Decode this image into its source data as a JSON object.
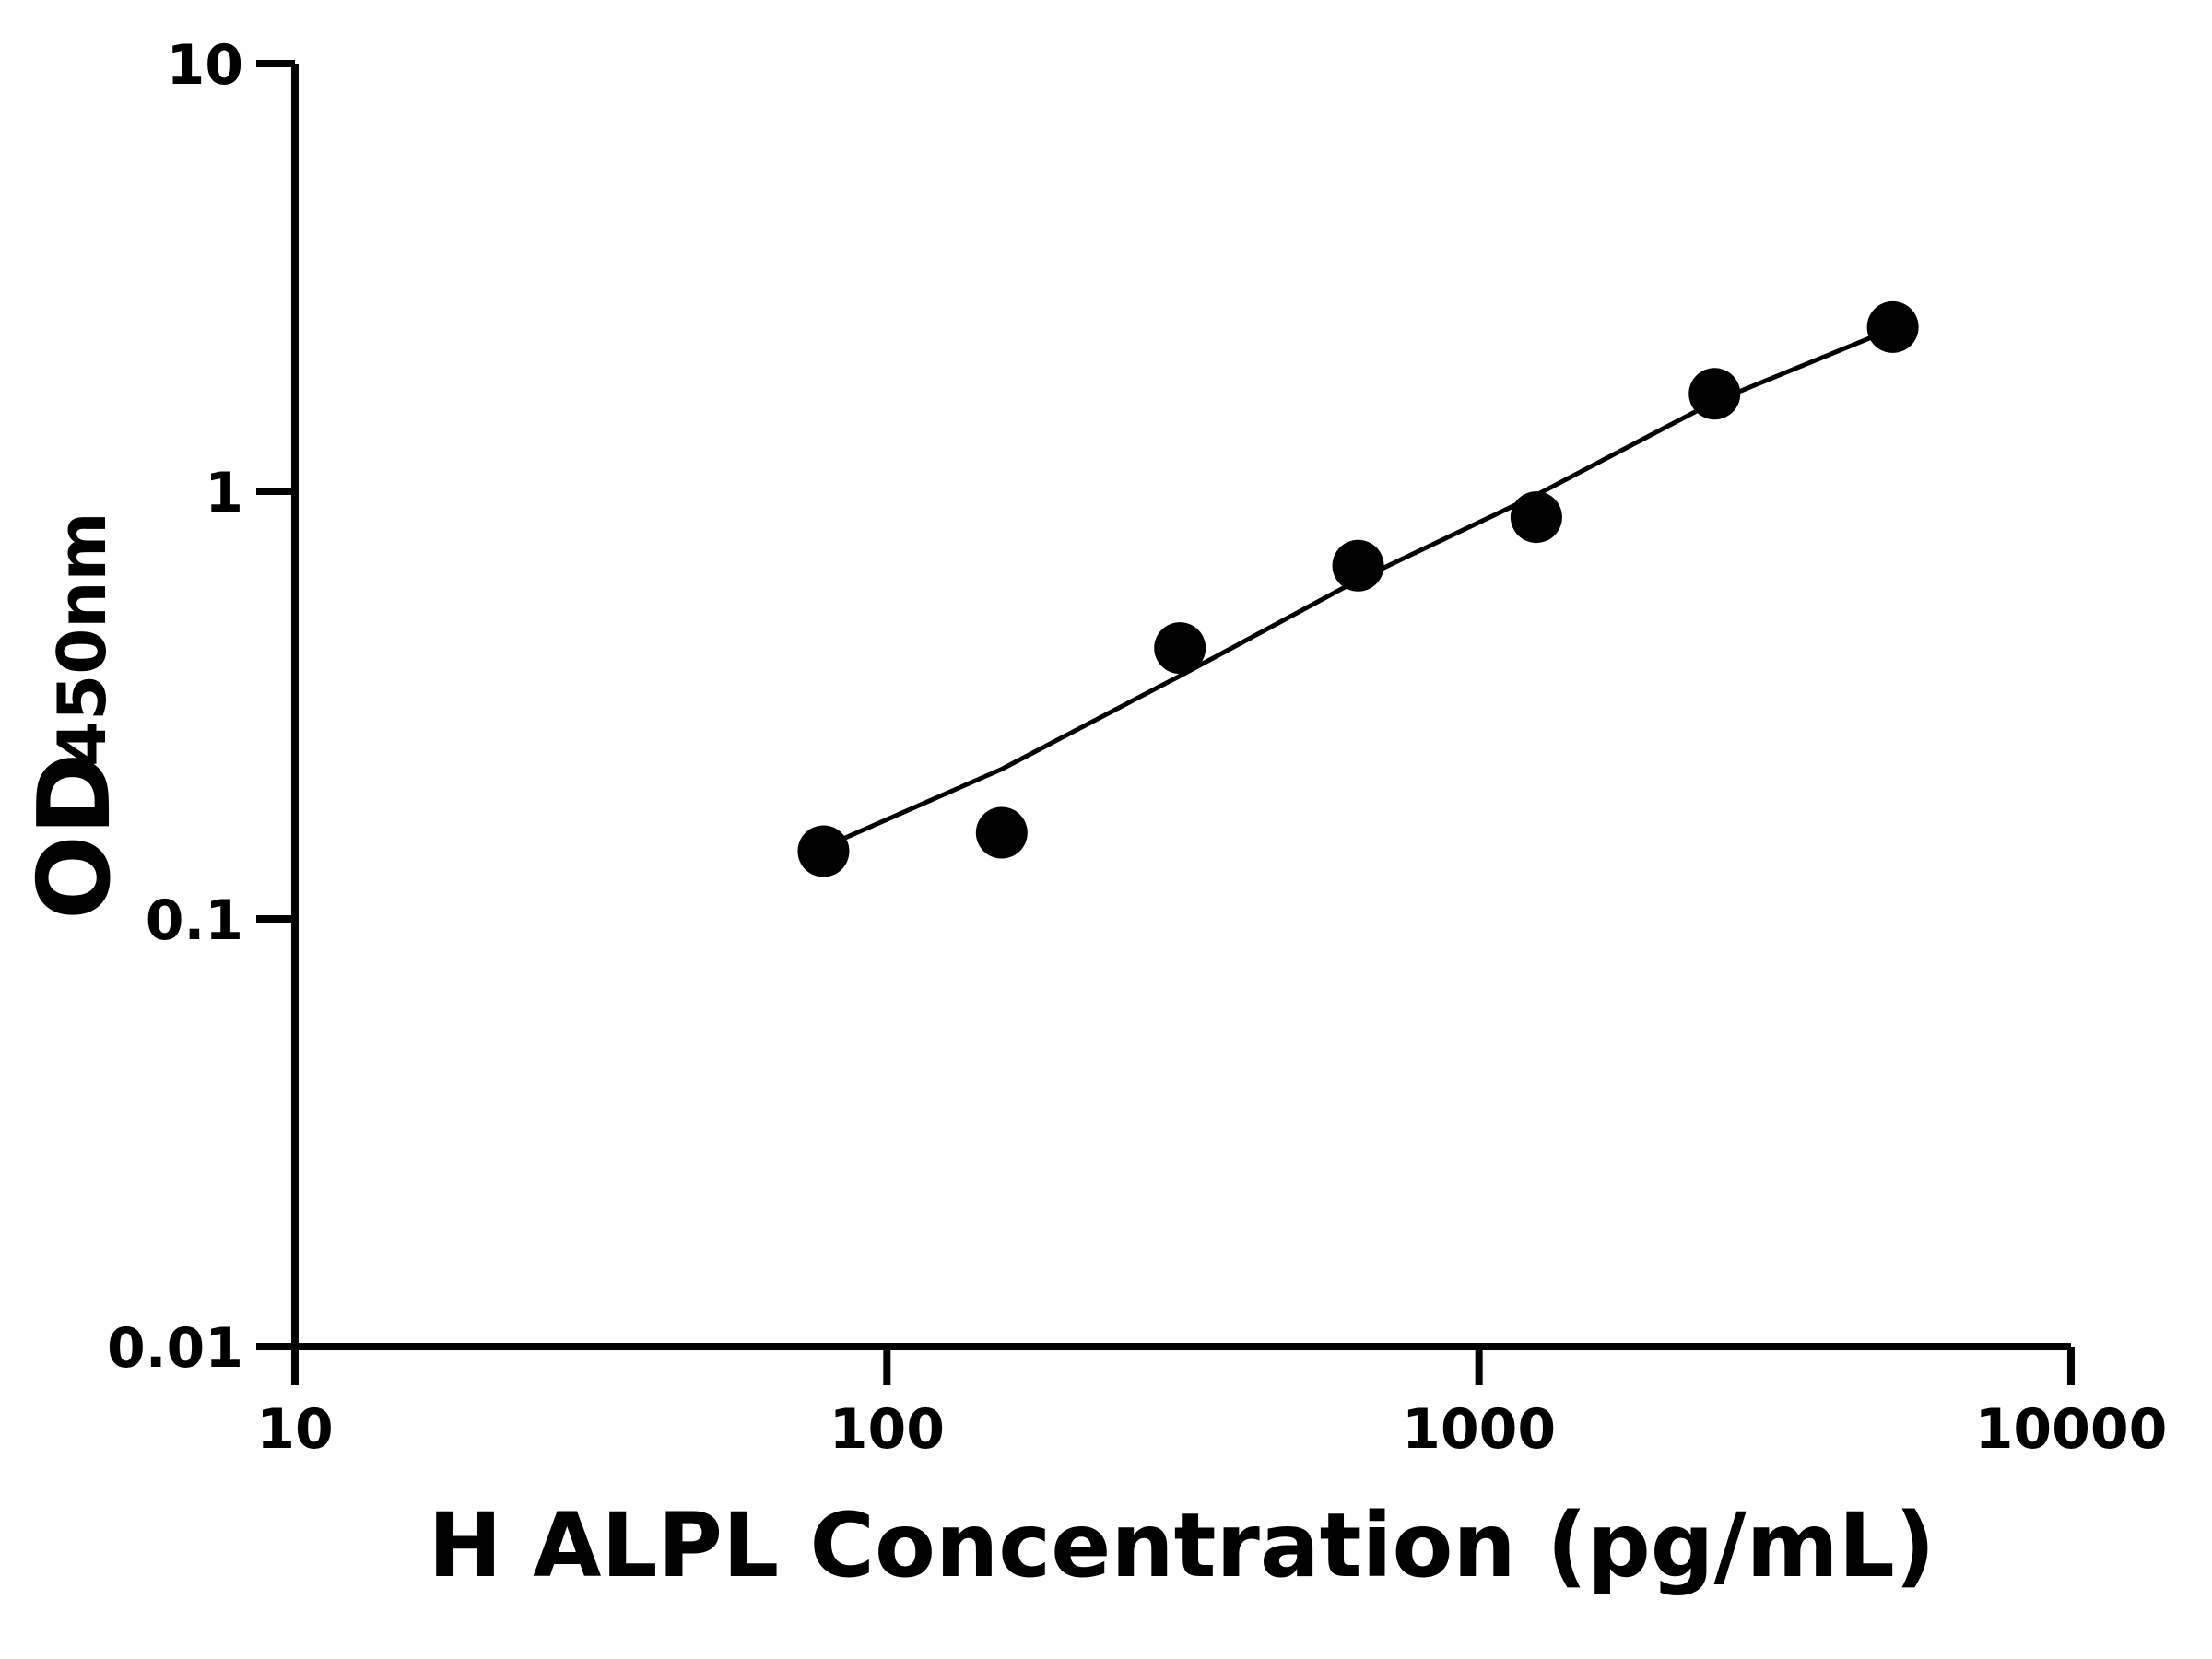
{
  "chart_data": {
    "type": "scatter",
    "x_label": "H ALPL Concentration (pg/mL)",
    "y_label": {
      "text": "OD",
      "subscript": "450nm"
    },
    "x": [
      78.125,
      156.25,
      312.5,
      625,
      1250,
      2500,
      5000
    ],
    "series": [
      {
        "color": "#000000",
        "marker": "circle",
        "values": [
          0.144,
          0.159,
          0.43,
          0.67,
          0.87,
          1.69,
          2.42
        ]
      },
      {
        "color": "#000000",
        "marker": "line",
        "values": [
          0.147,
          0.224,
          0.37,
          0.62,
          0.98,
          1.62,
          2.4
        ]
      }
    ],
    "xscale": "log",
    "yscale": "log",
    "xlim": [
      10,
      10000
    ],
    "ylim": [
      0.01,
      10
    ],
    "xticks": [
      10,
      100,
      1000,
      10000
    ],
    "yticks": [
      0.01,
      0.1,
      1,
      10
    ]
  }
}
